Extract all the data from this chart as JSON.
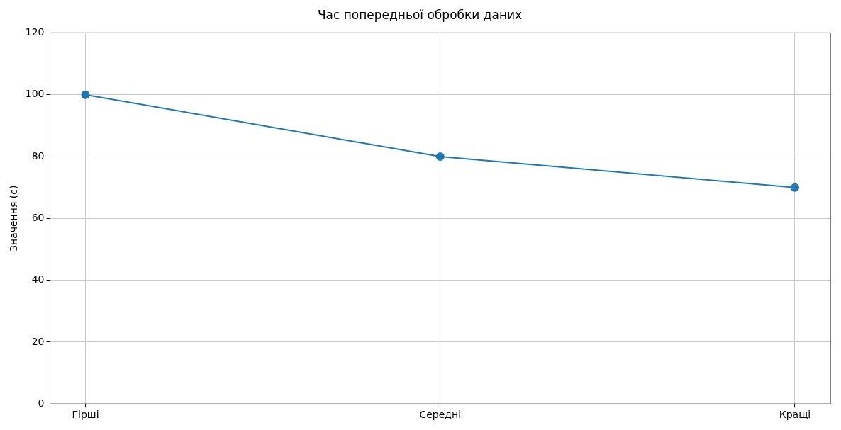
{
  "chart_data": {
    "type": "line",
    "title": "Час попередньої обробки даних",
    "ylabel": "Значення (с)",
    "categories": [
      "Гірші",
      "Середні",
      "Кращі"
    ],
    "series": [
      {
        "color": "#1f77b4",
        "values": [
          100,
          80,
          70
        ]
      }
    ],
    "ylim": [
      0,
      120
    ],
    "yticks": [
      0,
      20,
      40,
      60,
      80,
      100,
      120
    ],
    "grid": true,
    "legend": false,
    "marker": "circle",
    "line_style": "solid"
  }
}
